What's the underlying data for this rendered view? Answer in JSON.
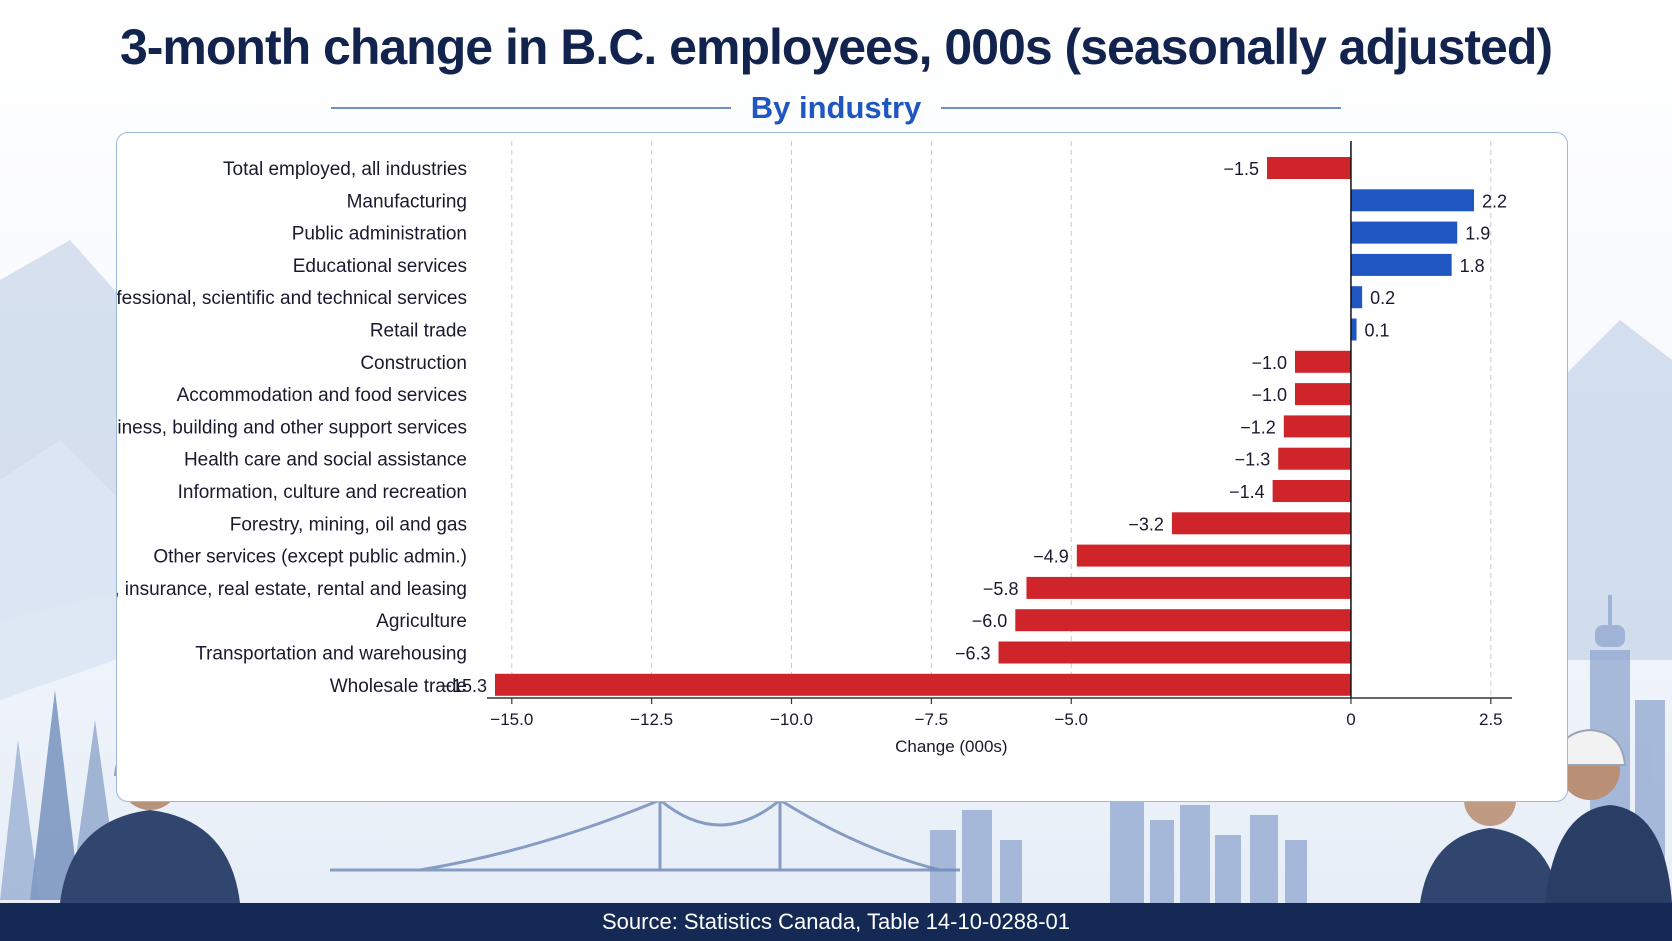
{
  "header": {
    "title": "3-month change in B.C. employees, 000s (seasonally adjusted)",
    "subtitle": "By industry"
  },
  "footer": {
    "source": "Source: Statistics Canada, Table 14-10-0288-01"
  },
  "colors": {
    "positive": "#1f56c2",
    "negative": "#d0242b",
    "title": "#12234d",
    "grid": "#c9c9c9"
  },
  "chart_data": {
    "type": "bar",
    "orientation": "horizontal",
    "categories": [
      "Total employed, all industries",
      "Manufacturing",
      "Public administration",
      "Educational services",
      "Professional, scientific and technical services",
      "Retail trade",
      "Construction",
      "Accommodation and food services",
      "Business, building and other support services",
      "Health care and social assistance",
      "Information, culture and recreation",
      "Forestry, mining, oil and gas",
      "Other services (except public admin.)",
      "Finance, insurance, real estate, rental and leasing",
      "Agriculture",
      "Transportation and warehousing",
      "Wholesale trade"
    ],
    "values": [
      -1.5,
      2.2,
      1.9,
      1.8,
      0.2,
      0.1,
      -1.0,
      -1.0,
      -1.2,
      -1.3,
      -1.4,
      -3.2,
      -4.9,
      -5.8,
      -6.0,
      -6.3,
      -15.3
    ],
    "value_labels": [
      "−1.5",
      "2.2",
      "1.9",
      "1.8",
      "0.2",
      "0.1",
      "−1.0",
      "−1.0",
      "−1.2",
      "−1.3",
      "−1.4",
      "−3.2",
      "−4.9",
      "−5.8",
      "−6.0",
      "−6.3",
      "−15.3"
    ],
    "xlabel": "Change (000s)",
    "xlim": [
      -15.3,
      2.7
    ],
    "xticks": [
      -15.0,
      -12.5,
      -10.0,
      -7.5,
      -5.0,
      0,
      2.5
    ],
    "xtick_labels": [
      "−15.0",
      "−12.5",
      "−10.0",
      "−7.5",
      "−5.0",
      "0",
      "2.5"
    ],
    "grid": "vertical dashed"
  }
}
